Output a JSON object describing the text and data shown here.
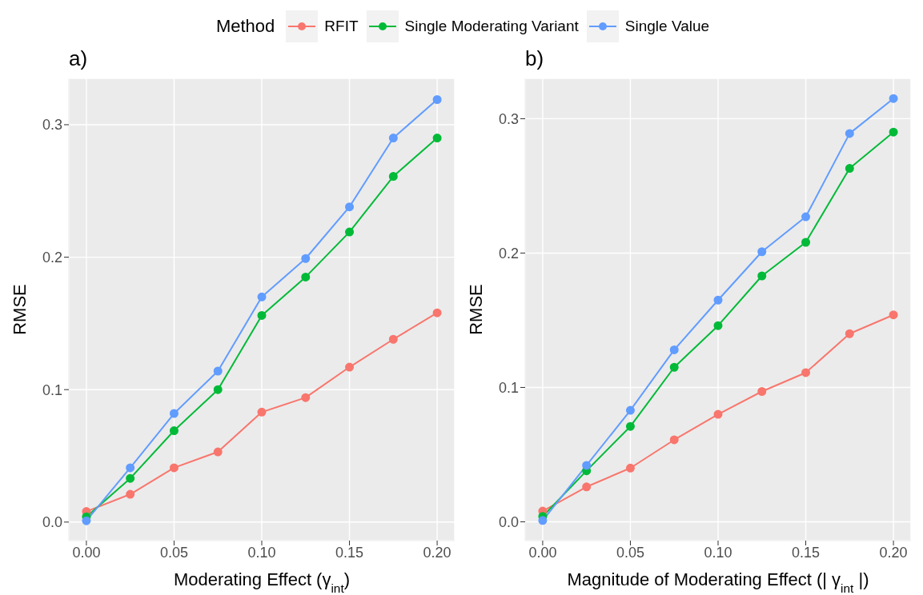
{
  "chart_data": [
    {
      "type": "line",
      "title": "a)",
      "xlabel": "Moderating Effect (γ$_{int}$)",
      "ylabel": "RMSE",
      "legend_title": "Method",
      "legend": "top",
      "grid": true,
      "marker": "circle",
      "line_style": "solid",
      "x": [
        0,
        0.025,
        0.05,
        0.075,
        0.1,
        0.125,
        0.15,
        0.175,
        0.2
      ],
      "xlim": [
        -0.01,
        0.21
      ],
      "xticks": [
        {
          "value": 0,
          "label": "0.00"
        },
        {
          "value": 0.05,
          "label": "0.05"
        },
        {
          "value": 0.1,
          "label": "0.10"
        },
        {
          "value": 0.15,
          "label": "0.15"
        },
        {
          "value": 0.2,
          "label": "0.20"
        }
      ],
      "ylim": [
        -0.014,
        0.335
      ],
      "yticks": [
        {
          "value": 0,
          "label": "0.0"
        },
        {
          "value": 0.1,
          "label": "0.1"
        },
        {
          "value": 0.2,
          "label": "0.2"
        },
        {
          "value": 0.3,
          "label": "0.3"
        }
      ],
      "series": [
        {
          "name": "RFIT",
          "color": "#f8766d",
          "values": [
            0.008,
            0.021,
            0.041,
            0.053,
            0.083,
            0.094,
            0.117,
            0.138,
            0.158
          ]
        },
        {
          "name": "Single Moderating Variant",
          "color": "#00ba38",
          "values": [
            0.004,
            0.033,
            0.069,
            0.1,
            0.156,
            0.185,
            0.219,
            0.261,
            0.29
          ]
        },
        {
          "name": "Single Value",
          "color": "#619cff",
          "values": [
            0.001,
            0.041,
            0.082,
            0.114,
            0.17,
            0.199,
            0.238,
            0.29,
            0.319
          ]
        }
      ]
    },
    {
      "type": "line",
      "title": "b)",
      "xlabel": "Magnitude of Moderating Effect (| γ$_{int}$ |)",
      "ylabel": "RMSE",
      "grid": true,
      "marker": "circle",
      "line_style": "solid",
      "x": [
        0,
        0.025,
        0.05,
        0.075,
        0.1,
        0.125,
        0.15,
        0.175,
        0.2
      ],
      "xlim": [
        -0.01,
        0.21
      ],
      "xticks": [
        {
          "value": 0,
          "label": "0.00"
        },
        {
          "value": 0.05,
          "label": "0.05"
        },
        {
          "value": 0.1,
          "label": "0.10"
        },
        {
          "value": 0.15,
          "label": "0.15"
        },
        {
          "value": 0.2,
          "label": "0.20"
        }
      ],
      "ylim": [
        -0.014,
        0.33
      ],
      "yticks": [
        {
          "value": 0,
          "label": "0.0"
        },
        {
          "value": 0.1,
          "label": "0.1"
        },
        {
          "value": 0.2,
          "label": "0.2"
        },
        {
          "value": 0.3,
          "label": "0.3"
        }
      ],
      "series": [
        {
          "color": "#f8766d",
          "values": [
            0.008,
            0.026,
            0.04,
            0.061,
            0.08,
            0.097,
            0.111,
            0.14,
            0.154
          ]
        },
        {
          "color": "#00ba38",
          "values": [
            0.004,
            0.038,
            0.071,
            0.115,
            0.146,
            0.183,
            0.208,
            0.263,
            0.29
          ]
        },
        {
          "color": "#619cff",
          "values": [
            0.001,
            0.042,
            0.083,
            0.128,
            0.165,
            0.201,
            0.227,
            0.289,
            0.315
          ]
        }
      ]
    }
  ]
}
